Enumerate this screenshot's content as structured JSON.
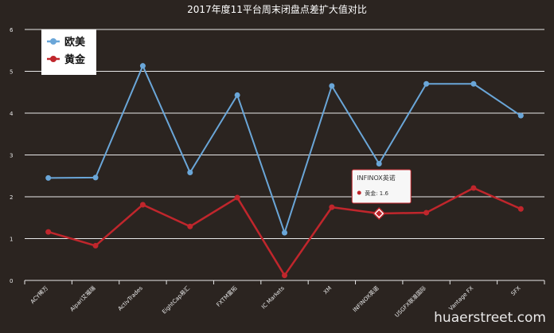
{
  "chart_data": {
    "type": "line",
    "title": "2017年度11平台周末闭盘点差扩大值对比",
    "categories": [
      "ACY稀万",
      "Alpari艾福瑞",
      "ActivTrades",
      "EightCap易汇",
      "FXTM富拓",
      "IC Markets",
      "XM",
      "INFINOX英诺",
      "USGFX联准国际",
      "Vantage FX",
      "SFX"
    ],
    "ylim": [
      0,
      6
    ],
    "yticks": [
      0,
      1,
      2,
      3,
      4,
      5,
      6
    ],
    "grid": true,
    "legend_position": "top-left",
    "series": [
      {
        "name": "欧美",
        "color": "#6aa6d8",
        "values": [
          2.45,
          2.46,
          5.13,
          2.58,
          4.43,
          1.14,
          4.65,
          2.79,
          4.7,
          4.7,
          3.94
        ]
      },
      {
        "name": "黄金",
        "color": "#c0262c",
        "values": [
          1.16,
          0.83,
          1.81,
          1.29,
          1.98,
          0.12,
          1.75,
          1.6,
          1.62,
          2.21,
          1.71
        ]
      }
    ],
    "tooltip": {
      "category": "INFINOX英诺",
      "series": "黄金",
      "text": "黄金: 1.6"
    }
  },
  "watermark": "huaerstreet.com"
}
